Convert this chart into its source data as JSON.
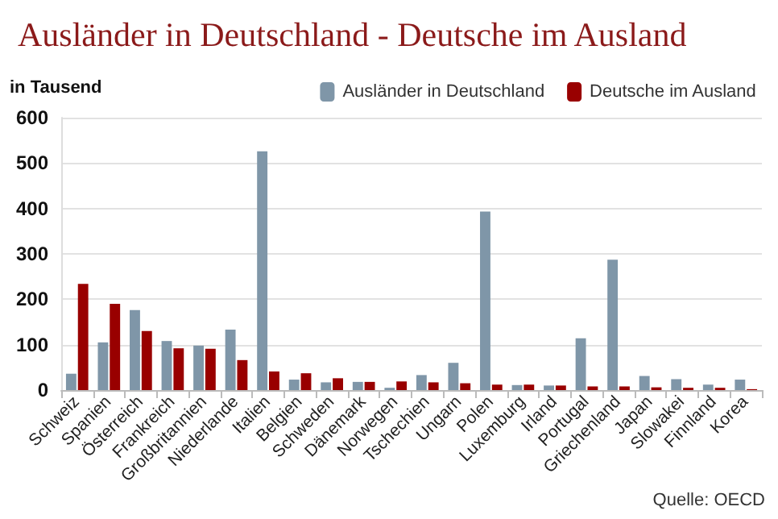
{
  "chart_data": {
    "type": "bar",
    "title": "Ausländer in Deutschland - Deutsche im Ausland",
    "ylabel": "in Tausend",
    "categories": [
      "Schweiz",
      "Spanien",
      "Österreich",
      "Frankreich",
      "Großbritannien",
      "Niederlande",
      "Italien",
      "Belgien",
      "Schweden",
      "Dänemark",
      "Norwegen",
      "Tschechien",
      "Ungarn",
      "Polen",
      "Luxemburg",
      "Irland",
      "Portugal",
      "Griechenland",
      "Japan",
      "Slowakei",
      "Finnland",
      "Korea"
    ],
    "series": [
      {
        "name": "Ausländer in Deutschland",
        "color": "#7f96a8",
        "values": [
          36,
          105,
          176,
          108,
          98,
          133,
          526,
          23,
          17,
          18,
          5,
          33,
          60,
          393,
          11,
          10,
          114,
          287,
          31,
          24,
          12,
          23
        ]
      },
      {
        "name": "Deutsche im Ausland",
        "color": "#990000",
        "values": [
          234,
          190,
          130,
          92,
          91,
          66,
          41,
          37,
          26,
          18,
          19,
          17,
          15,
          12,
          12,
          10,
          8,
          8,
          6,
          5,
          5,
          2
        ]
      }
    ],
    "ylim": [
      0,
      600
    ],
    "yticks": [
      0,
      100,
      200,
      300,
      400,
      500,
      600
    ],
    "grid": "y",
    "legend": "top right",
    "annotations": [
      "Quelle: OECD"
    ]
  }
}
